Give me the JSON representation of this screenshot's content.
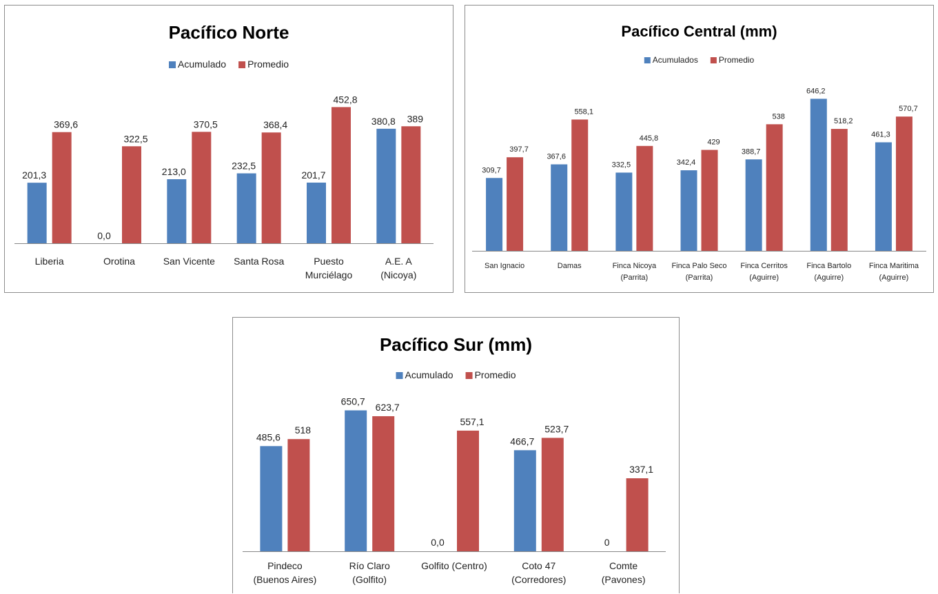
{
  "colors": {
    "acumulado": "#4f81bd",
    "promedio": "#c0504d"
  },
  "chart_data": [
    {
      "type": "bar",
      "title": "Pacífico Norte",
      "categories": [
        [
          "Liberia"
        ],
        [
          "Orotina"
        ],
        [
          "San Vicente"
        ],
        [
          "Santa Rosa"
        ],
        [
          "Puesto",
          "Murciélago"
        ],
        [
          "A.E. A",
          "(Nicoya)"
        ]
      ],
      "series": [
        {
          "name": "Acumulado",
          "values": [
            201.3,
            0.0,
            213.0,
            232.5,
            201.7,
            380.8
          ],
          "labels": [
            "201,3",
            "0,0",
            "213,0",
            "232,5",
            "201,7",
            "380,8"
          ]
        },
        {
          "name": "Promedio",
          "values": [
            369.6,
            322.5,
            370.5,
            368.4,
            452.8,
            389
          ],
          "labels": [
            "369,6",
            "322,5",
            "370,5",
            "368,4",
            "452,8",
            "389"
          ]
        }
      ],
      "ylim": [
        0,
        550
      ],
      "legend": "top-center",
      "grid": false
    },
    {
      "type": "bar",
      "title": "Pacífico Central (mm)",
      "categories": [
        [
          "San Ignacio"
        ],
        [
          "Damas"
        ],
        [
          "Finca Nicoya",
          "(Parrita)"
        ],
        [
          "Finca Palo Seco",
          "(Parrita)"
        ],
        [
          "Finca Cerritos",
          "(Aguirre)"
        ],
        [
          "Finca Bartolo",
          "(Aguirre)"
        ],
        [
          "Finca Maritima",
          "(Aguirre)"
        ]
      ],
      "series": [
        {
          "name": "Acumulados",
          "values": [
            309.7,
            367.6,
            332.5,
            342.4,
            388.7,
            646.2,
            461.3
          ],
          "labels": [
            "309,7",
            "367,6",
            "332,5",
            "342,4",
            "388,7",
            "646,2",
            "461,3"
          ]
        },
        {
          "name": "Promedio",
          "values": [
            397.7,
            558.1,
            445.8,
            429,
            538,
            518.2,
            570.7
          ],
          "labels": [
            "397,7",
            "558,1",
            "445,8",
            "429",
            "538",
            "518,2",
            "570,7"
          ]
        }
      ],
      "ylim": [
        0,
        700
      ],
      "legend": "top-center",
      "grid": false
    },
    {
      "type": "bar",
      "title": "Pacífico Sur (mm)",
      "categories": [
        [
          "Pindeco",
          "(Buenos Aires)"
        ],
        [
          "Río Claro",
          "(Golfito)"
        ],
        [
          "Golfito (Centro)"
        ],
        [
          "Coto 47",
          "(Corredores)"
        ],
        [
          "Comte",
          "(Pavones)"
        ]
      ],
      "series": [
        {
          "name": "Acumulado",
          "values": [
            485.6,
            650.7,
            0.0,
            466.7,
            0
          ],
          "labels": [
            "485,6",
            "650,7",
            "0,0",
            "466,7",
            "0"
          ]
        },
        {
          "name": "Promedio",
          "values": [
            518,
            623.7,
            557.1,
            523.7,
            337.1
          ],
          "labels": [
            "518",
            "623,7",
            "557,1",
            "523,7",
            "337,1"
          ]
        }
      ],
      "ylim": [
        0,
        700
      ],
      "legend": "top-center",
      "grid": false
    }
  ]
}
